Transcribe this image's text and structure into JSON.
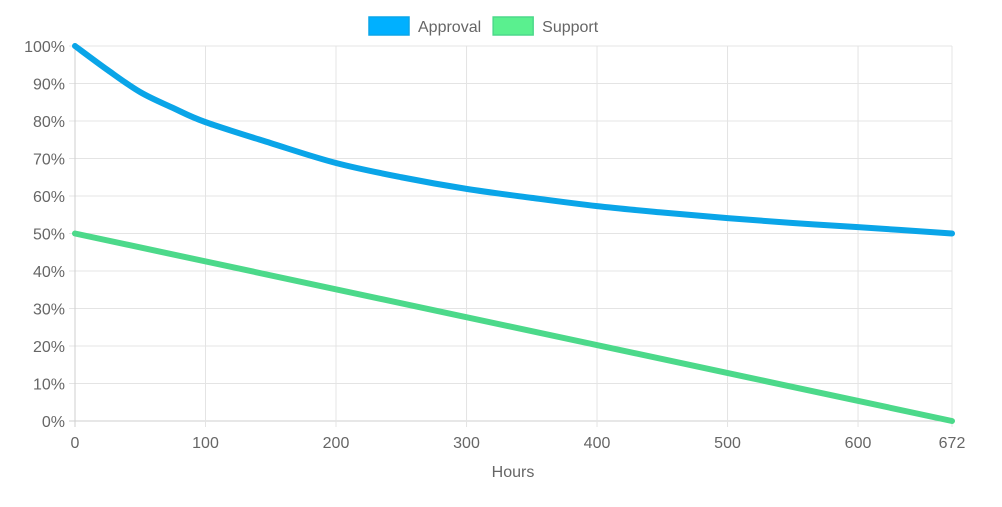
{
  "chart_data": {
    "type": "line",
    "title": "",
    "xlabel": "Hours",
    "ylabel": "",
    "xlim": [
      0,
      672
    ],
    "ylim": [
      0,
      100
    ],
    "x_ticks": [
      0,
      100,
      200,
      300,
      400,
      500,
      600,
      672
    ],
    "x_tick_labels": [
      "0",
      "100",
      "200",
      "300",
      "400",
      "500",
      "600",
      "672"
    ],
    "y_ticks": [
      0,
      10,
      20,
      30,
      40,
      50,
      60,
      70,
      80,
      90,
      100
    ],
    "y_tick_labels": [
      "0%",
      "10%",
      "20%",
      "30%",
      "40%",
      "50%",
      "60%",
      "70%",
      "80%",
      "90%",
      "100%"
    ],
    "grid": true,
    "legend_position": "top",
    "series": [
      {
        "name": "Approval",
        "color": "#0aa5e8",
        "fill": "#00b0ff",
        "x": [
          0,
          25,
          50,
          75,
          100,
          150,
          200,
          250,
          300,
          350,
          400,
          450,
          500,
          550,
          600,
          672
        ],
        "y": [
          100,
          93.6,
          87.7,
          83.5,
          79.7,
          74.1,
          68.8,
          65.0,
          61.9,
          59.5,
          57.3,
          55.6,
          54.1,
          52.8,
          51.7,
          50
        ]
      },
      {
        "name": "Support",
        "color": "#4cd98a",
        "fill": "#5af08f",
        "x": [
          0,
          672
        ],
        "y": [
          50,
          0
        ]
      }
    ]
  }
}
